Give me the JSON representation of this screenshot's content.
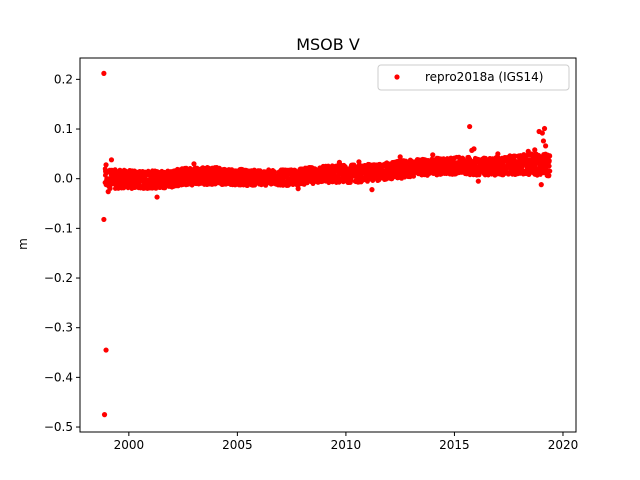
{
  "chart_data": {
    "type": "scatter",
    "title": "MSOB V",
    "xlabel": "",
    "ylabel": "m",
    "xlim": [
      1997.75,
      2020.6
    ],
    "ylim": [
      -0.51,
      0.243
    ],
    "xticks": [
      2000,
      2005,
      2010,
      2015,
      2020
    ],
    "xtick_labels": [
      "2000",
      "2005",
      "2010",
      "2015",
      "2020"
    ],
    "yticks": [
      -0.5,
      -0.4,
      -0.3,
      -0.2,
      -0.1,
      0.0,
      0.1,
      0.2
    ],
    "ytick_labels": [
      "−0.5",
      "−0.4",
      "−0.3",
      "−0.2",
      "−0.1",
      "0.0",
      "0.1",
      "0.2"
    ],
    "grid": false,
    "legend_position": "top-right",
    "series": [
      {
        "name": "repro2018a (IGS14)",
        "color": "#ff0000",
        "marker": "circle",
        "band": [
          {
            "x": 1998.9,
            "y_low": -0.02,
            "y_high": 0.02
          },
          {
            "x": 1999.5,
            "y_low": -0.02,
            "y_high": 0.018
          },
          {
            "x": 2000.5,
            "y_low": -0.02,
            "y_high": 0.016
          },
          {
            "x": 2001.5,
            "y_low": -0.02,
            "y_high": 0.016
          },
          {
            "x": 2002.5,
            "y_low": -0.014,
            "y_high": 0.022
          },
          {
            "x": 2003.5,
            "y_low": -0.012,
            "y_high": 0.024
          },
          {
            "x": 2004.5,
            "y_low": -0.012,
            "y_high": 0.022
          },
          {
            "x": 2005.5,
            "y_low": -0.014,
            "y_high": 0.018
          },
          {
            "x": 2006.5,
            "y_low": -0.014,
            "y_high": 0.018
          },
          {
            "x": 2007.5,
            "y_low": -0.014,
            "y_high": 0.018
          },
          {
            "x": 2008.5,
            "y_low": -0.01,
            "y_high": 0.024
          },
          {
            "x": 2009.5,
            "y_low": -0.008,
            "y_high": 0.028
          },
          {
            "x": 2010.5,
            "y_low": -0.008,
            "y_high": 0.028
          },
          {
            "x": 2011.5,
            "y_low": -0.004,
            "y_high": 0.03
          },
          {
            "x": 2012.5,
            "y_low": 0.0,
            "y_high": 0.036
          },
          {
            "x": 2013.5,
            "y_low": 0.006,
            "y_high": 0.04
          },
          {
            "x": 2014.5,
            "y_low": 0.008,
            "y_high": 0.042
          },
          {
            "x": 2015.5,
            "y_low": 0.008,
            "y_high": 0.044
          },
          {
            "x": 2016.5,
            "y_low": 0.006,
            "y_high": 0.042
          },
          {
            "x": 2017.5,
            "y_low": 0.008,
            "y_high": 0.046
          },
          {
            "x": 2018.5,
            "y_low": 0.008,
            "y_high": 0.05
          },
          {
            "x": 2019.4,
            "y_low": 0.004,
            "y_high": 0.05
          }
        ],
        "points": [
          {
            "x": 1998.85,
            "y": 0.212
          },
          {
            "x": 1998.85,
            "y": -0.082
          },
          {
            "x": 1998.95,
            "y": -0.345
          },
          {
            "x": 1998.88,
            "y": -0.475
          },
          {
            "x": 1999.2,
            "y": 0.038
          },
          {
            "x": 1998.95,
            "y": 0.028
          },
          {
            "x": 1999.05,
            "y": -0.026
          },
          {
            "x": 2001.3,
            "y": -0.037
          },
          {
            "x": 2003.0,
            "y": 0.03
          },
          {
            "x": 2007.8,
            "y": -0.02
          },
          {
            "x": 2009.7,
            "y": 0.033
          },
          {
            "x": 2010.6,
            "y": 0.034
          },
          {
            "x": 2011.2,
            "y": -0.022
          },
          {
            "x": 2012.5,
            "y": 0.044
          },
          {
            "x": 2014.0,
            "y": 0.048
          },
          {
            "x": 2015.7,
            "y": 0.105
          },
          {
            "x": 2015.8,
            "y": 0.057
          },
          {
            "x": 2015.9,
            "y": 0.06
          },
          {
            "x": 2016.1,
            "y": -0.005
          },
          {
            "x": 2017.0,
            "y": 0.05
          },
          {
            "x": 2018.9,
            "y": 0.095
          },
          {
            "x": 2019.05,
            "y": 0.092
          },
          {
            "x": 2019.1,
            "y": 0.076
          },
          {
            "x": 2019.15,
            "y": 0.101
          },
          {
            "x": 2019.0,
            "y": -0.012
          },
          {
            "x": 2019.2,
            "y": 0.066
          },
          {
            "x": 2018.7,
            "y": 0.058
          },
          {
            "x": 2018.4,
            "y": 0.055
          }
        ]
      }
    ]
  }
}
